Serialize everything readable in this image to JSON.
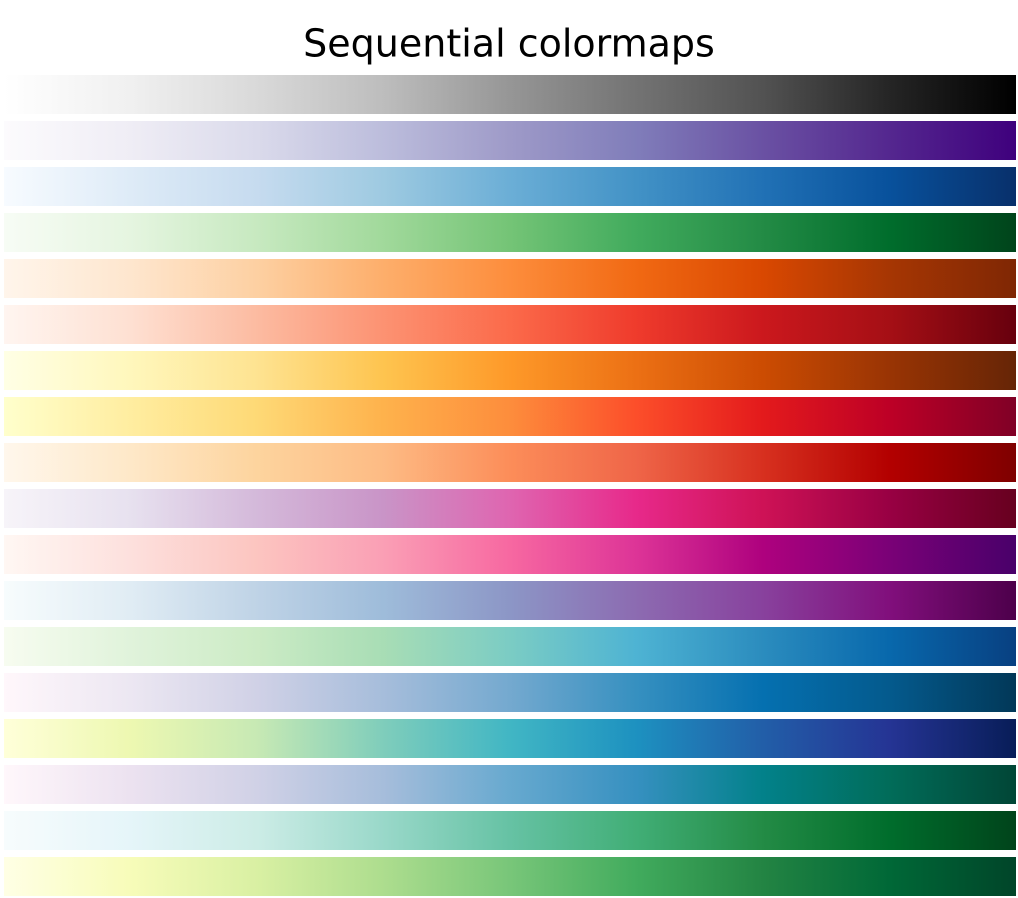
{
  "chart_data": {
    "type": "colormap",
    "title": "Sequential colormaps",
    "colormaps": [
      [
        "#ffffff",
        "#f0f0f0",
        "#d9d9d9",
        "#bdbdbd",
        "#969696",
        "#737373",
        "#525252",
        "#252525",
        "#000000"
      ],
      [
        "#fcfbfd",
        "#efedf5",
        "#dadaeb",
        "#bcbddc",
        "#9e9ac8",
        "#807dba",
        "#6a51a3",
        "#54278f",
        "#3f007d"
      ],
      [
        "#f7fbff",
        "#deebf7",
        "#c6dbef",
        "#9ecae1",
        "#6baed6",
        "#4292c6",
        "#2171b5",
        "#08519c",
        "#08306b"
      ],
      [
        "#f7fcf5",
        "#e5f5e0",
        "#c7e9c0",
        "#a1d99b",
        "#74c476",
        "#41ab5d",
        "#238b45",
        "#006d2c",
        "#00441b"
      ],
      [
        "#fff5eb",
        "#fee6ce",
        "#fdd0a2",
        "#fdae6b",
        "#fd8d3c",
        "#f16913",
        "#d94801",
        "#a63603",
        "#7f2704"
      ],
      [
        "#fff5f0",
        "#fee0d2",
        "#fcbba1",
        "#fc9272",
        "#fb6a4a",
        "#ef3b2c",
        "#cb181d",
        "#a50f15",
        "#67000d"
      ],
      [
        "#ffffe5",
        "#fff7bc",
        "#fee391",
        "#fec44f",
        "#fe9929",
        "#ec7014",
        "#cc4c02",
        "#993404",
        "#662506"
      ],
      [
        "#ffffcc",
        "#ffeda0",
        "#fed976",
        "#feb24c",
        "#fd8d3c",
        "#fc4e2a",
        "#e31a1c",
        "#bd0026",
        "#800026"
      ],
      [
        "#fff7ec",
        "#fee8c8",
        "#fdd49e",
        "#fdbb84",
        "#fc8d59",
        "#ef6548",
        "#d7301f",
        "#b30000",
        "#7f0000"
      ],
      [
        "#f7f4f9",
        "#e7e1ef",
        "#d4b9da",
        "#c994c7",
        "#df65b0",
        "#e7298a",
        "#ce1256",
        "#980043",
        "#67001f"
      ],
      [
        "#fff7f3",
        "#fde0dd",
        "#fcc5c0",
        "#fa9fb5",
        "#f768a1",
        "#dd3497",
        "#ae017e",
        "#7a0177",
        "#49006a"
      ],
      [
        "#f7fcfd",
        "#e0ecf4",
        "#bfd3e6",
        "#9ebcda",
        "#8c96c6",
        "#8c6bb1",
        "#88419d",
        "#810f7c",
        "#4d004b"
      ],
      [
        "#f7fcf0",
        "#e0f3db",
        "#ccebc5",
        "#a8ddb5",
        "#7bccc4",
        "#4eb3d3",
        "#2b8cbe",
        "#0868ac",
        "#084081"
      ],
      [
        "#fff7fb",
        "#ece7f2",
        "#d0d1e6",
        "#a6bddb",
        "#74a9cf",
        "#3690c0",
        "#0570b0",
        "#045a8d",
        "#023858"
      ],
      [
        "#ffffd9",
        "#edf8b1",
        "#c7e9b4",
        "#7fcdbb",
        "#41b6c4",
        "#1d91c0",
        "#225ea8",
        "#253494",
        "#081d58"
      ],
      [
        "#fff7fb",
        "#ece2f0",
        "#d0d1e6",
        "#a6bddb",
        "#67a9cf",
        "#3690c0",
        "#02818a",
        "#016c59",
        "#014636"
      ],
      [
        "#f7fcfd",
        "#e5f5f9",
        "#ccece6",
        "#99d8c9",
        "#66c2a4",
        "#41ae76",
        "#238b45",
        "#006d2c",
        "#00441b"
      ],
      [
        "#ffffe5",
        "#f7fcb9",
        "#d9f0a3",
        "#addd8e",
        "#78c679",
        "#41ab5d",
        "#238443",
        "#006837",
        "#004529"
      ]
    ]
  }
}
